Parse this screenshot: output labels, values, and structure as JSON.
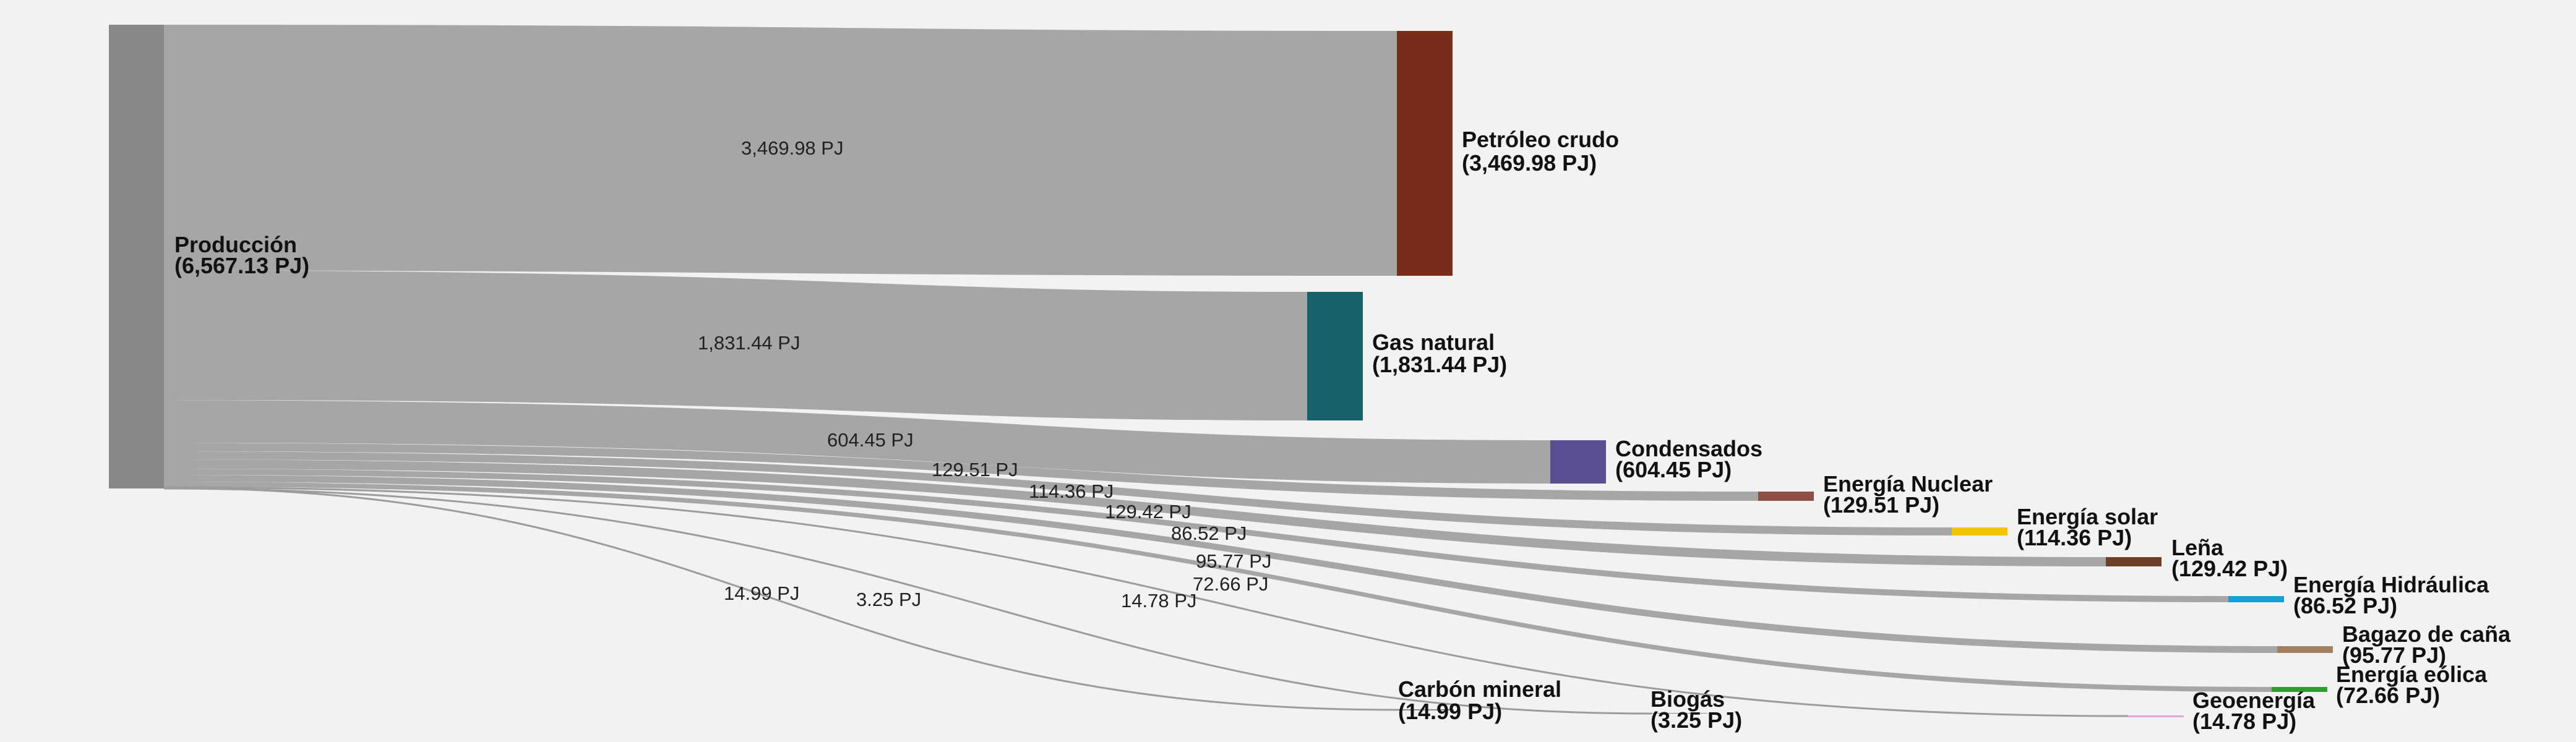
{
  "chart_data": {
    "type": "sankey",
    "unit": "PJ",
    "source": {
      "name": "Producción",
      "value": "6,567.13 PJ",
      "color": "#888888"
    },
    "targets": [
      {
        "key": "petroleo",
        "name": "Petróleo crudo",
        "value": "3,469.98 PJ",
        "flow": "3,469.98 PJ",
        "color": "#7a2c1a"
      },
      {
        "key": "gas",
        "name": "Gas natural",
        "value": "1,831.44 PJ",
        "flow": "1,831.44 PJ",
        "color": "#17636b"
      },
      {
        "key": "condensados",
        "name": "Condensados",
        "value": "604.45 PJ",
        "flow": "604.45 PJ",
        "color": "#5a4f91"
      },
      {
        "key": "nuclear",
        "name": "Energía Nuclear",
        "value": "129.51 PJ",
        "flow": "129.51 PJ",
        "color": "#8c5048"
      },
      {
        "key": "solar",
        "name": "Energía solar",
        "value": "114.36 PJ",
        "flow": "114.36 PJ",
        "color": "#f2c500"
      },
      {
        "key": "lena",
        "name": "Leña",
        "value": "129.42 PJ",
        "flow": "129.42 PJ",
        "color": "#6e3e26"
      },
      {
        "key": "hidraulica",
        "name": "Energía Hidráulica",
        "value": "86.52 PJ",
        "flow": "86.52 PJ",
        "color": "#1f9bd4"
      },
      {
        "key": "bagazo",
        "name": "Bagazo de caña",
        "value": "95.77 PJ",
        "flow": "95.77 PJ",
        "color": "#a07f5f"
      },
      {
        "key": "eolica",
        "name": "Energía eólica",
        "value": "72.66 PJ",
        "flow": "72.66 PJ",
        "color": "#2e9e2e"
      },
      {
        "key": "geo",
        "name": "Geoenergía",
        "value": "14.78 PJ",
        "flow": "14.78 PJ",
        "color": "#e6a3d8"
      },
      {
        "key": "carbon",
        "name": "Carbón mineral",
        "value": "14.99 PJ",
        "flow": "14.99 PJ",
        "color": "#8a8a8a"
      },
      {
        "key": "biogas",
        "name": "Biogás",
        "value": "3.25 PJ",
        "flow": "3.25 PJ",
        "color": "#8a8a8a"
      }
    ]
  }
}
